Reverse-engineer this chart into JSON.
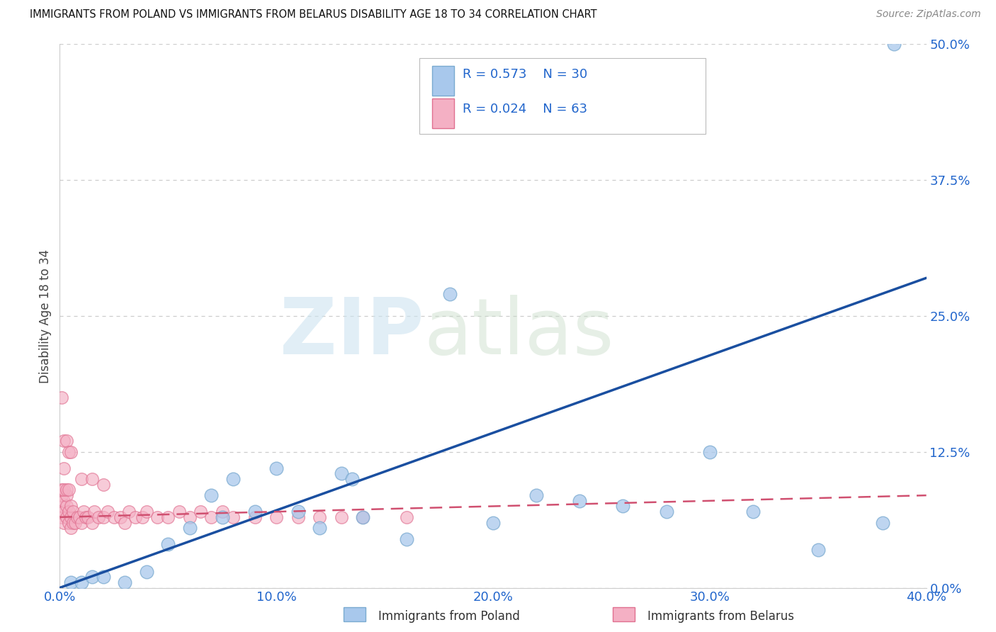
{
  "title": "IMMIGRANTS FROM POLAND VS IMMIGRANTS FROM BELARUS DISABILITY AGE 18 TO 34 CORRELATION CHART",
  "source": "Source: ZipAtlas.com",
  "ylabel_label": "Disability Age 18 to 34",
  "legend_label1": "Immigrants from Poland",
  "legend_label2": "Immigrants from Belarus",
  "legend_R1": "0.573",
  "legend_N1": "30",
  "legend_R2": "0.024",
  "legend_N2": "63",
  "color_poland_fill": "#a8c8ec",
  "color_poland_edge": "#7aaad0",
  "color_poland_line": "#1a4fa0",
  "color_belarus_fill": "#f4b0c4",
  "color_belarus_edge": "#e07090",
  "color_belarus_line": "#d05070",
  "xlim": [
    0.0,
    0.4
  ],
  "ylim": [
    0.0,
    0.5
  ],
  "xticks": [
    0.0,
    0.1,
    0.2,
    0.3,
    0.4
  ],
  "yticks": [
    0.0,
    0.125,
    0.25,
    0.375,
    0.5
  ],
  "background_color": "#ffffff",
  "poland_x": [
    0.005,
    0.01,
    0.015,
    0.02,
    0.03,
    0.04,
    0.05,
    0.06,
    0.07,
    0.075,
    0.08,
    0.09,
    0.1,
    0.11,
    0.12,
    0.13,
    0.135,
    0.14,
    0.16,
    0.18,
    0.2,
    0.22,
    0.24,
    0.26,
    0.28,
    0.3,
    0.32,
    0.35,
    0.38,
    0.385
  ],
  "poland_y": [
    0.005,
    0.005,
    0.01,
    0.01,
    0.005,
    0.015,
    0.04,
    0.055,
    0.085,
    0.065,
    0.1,
    0.07,
    0.11,
    0.07,
    0.055,
    0.105,
    0.1,
    0.065,
    0.045,
    0.27,
    0.06,
    0.085,
    0.08,
    0.075,
    0.07,
    0.125,
    0.07,
    0.035,
    0.06,
    0.5
  ],
  "belarus_x": [
    0.001,
    0.001,
    0.001,
    0.002,
    0.002,
    0.002,
    0.003,
    0.003,
    0.003,
    0.004,
    0.004,
    0.005,
    0.005,
    0.005,
    0.006,
    0.006,
    0.007,
    0.008,
    0.009,
    0.01,
    0.011,
    0.012,
    0.013,
    0.015,
    0.016,
    0.018,
    0.02,
    0.022,
    0.025,
    0.028,
    0.03,
    0.032,
    0.035,
    0.038,
    0.04,
    0.045,
    0.05,
    0.055,
    0.06,
    0.065,
    0.07,
    0.075,
    0.08,
    0.09,
    0.1,
    0.11,
    0.12,
    0.13,
    0.14,
    0.16,
    0.001,
    0.002,
    0.003,
    0.002,
    0.004,
    0.005,
    0.01,
    0.015,
    0.02,
    0.001,
    0.002,
    0.003,
    0.004
  ],
  "belarus_y": [
    0.065,
    0.075,
    0.085,
    0.06,
    0.07,
    0.08,
    0.065,
    0.075,
    0.085,
    0.06,
    0.07,
    0.055,
    0.065,
    0.075,
    0.06,
    0.07,
    0.06,
    0.065,
    0.065,
    0.06,
    0.07,
    0.065,
    0.065,
    0.06,
    0.07,
    0.065,
    0.065,
    0.07,
    0.065,
    0.065,
    0.06,
    0.07,
    0.065,
    0.065,
    0.07,
    0.065,
    0.065,
    0.07,
    0.065,
    0.07,
    0.065,
    0.07,
    0.065,
    0.065,
    0.065,
    0.065,
    0.065,
    0.065,
    0.065,
    0.065,
    0.175,
    0.135,
    0.135,
    0.11,
    0.125,
    0.125,
    0.1,
    0.1,
    0.095,
    0.09,
    0.09,
    0.09,
    0.09
  ],
  "poland_line_x": [
    0.0,
    0.4
  ],
  "poland_line_y_start": 0.0,
  "poland_line_y_end": 0.285,
  "belarus_line_x": [
    0.0,
    0.4
  ],
  "belarus_line_y_start": 0.065,
  "belarus_line_y_end": 0.085
}
